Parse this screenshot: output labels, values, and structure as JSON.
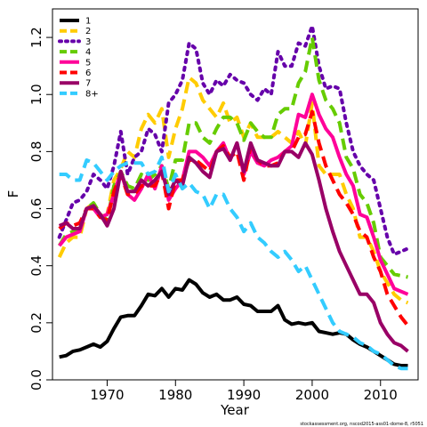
{
  "chart_data": {
    "type": "line",
    "xlabel": "Year",
    "ylabel": "F",
    "xlim": [
      1962,
      2015.5
    ],
    "ylim": [
      0,
      1.3
    ],
    "xticks": [
      1970,
      1980,
      1990,
      2000,
      2010
    ],
    "yticks": [
      0.0,
      0.2,
      0.4,
      0.6,
      0.8,
      1.0,
      1.2
    ],
    "ytick_labels": [
      "0.0",
      "0.2",
      "0.4",
      "0.6",
      "0.8",
      "1.0",
      "1.2"
    ],
    "legend_position": "top-left",
    "grid": false,
    "x": [
      1963,
      1964,
      1965,
      1966,
      1967,
      1968,
      1969,
      1970,
      1971,
      1972,
      1973,
      1974,
      1975,
      1976,
      1977,
      1978,
      1979,
      1980,
      1981,
      1982,
      1983,
      1984,
      1985,
      1986,
      1987,
      1988,
      1989,
      1990,
      1991,
      1992,
      1993,
      1994,
      1995,
      1996,
      1997,
      1998,
      1999,
      2000,
      2001,
      2002,
      2003,
      2004,
      2005,
      2006,
      2007,
      2008,
      2009,
      2010,
      2011,
      2012,
      2013,
      2014
    ],
    "series": [
      {
        "name": "1",
        "color": "#000000",
        "dash": "solid",
        "values": [
          0.08,
          0.085,
          0.1,
          0.105,
          0.115,
          0.125,
          0.115,
          0.135,
          0.18,
          0.22,
          0.225,
          0.225,
          0.26,
          0.3,
          0.295,
          0.32,
          0.29,
          0.32,
          0.315,
          0.35,
          0.335,
          0.305,
          0.29,
          0.3,
          0.28,
          0.28,
          0.29,
          0.265,
          0.26,
          0.24,
          0.24,
          0.24,
          0.26,
          0.21,
          0.195,
          0.2,
          0.195,
          0.2,
          0.17,
          0.165,
          0.16,
          0.165,
          0.16,
          0.14,
          0.125,
          0.115,
          0.1,
          0.085,
          0.07,
          0.055,
          0.05,
          0.05
        ]
      },
      {
        "name": "2",
        "color": "#ffcc00",
        "dash": "dashed",
        "values": [
          0.43,
          0.48,
          0.5,
          0.5,
          0.6,
          0.62,
          0.57,
          0.58,
          0.7,
          0.74,
          0.8,
          0.78,
          0.88,
          0.93,
          0.9,
          0.95,
          0.78,
          0.88,
          0.95,
          1.06,
          1.04,
          0.98,
          0.95,
          0.92,
          0.97,
          0.9,
          0.92,
          0.85,
          0.9,
          0.85,
          0.85,
          0.85,
          0.87,
          0.85,
          0.83,
          0.87,
          0.82,
          0.97,
          0.75,
          0.72,
          0.72,
          0.72,
          0.65,
          0.6,
          0.5,
          0.5,
          0.45,
          0.38,
          0.34,
          0.3,
          0.28,
          0.27
        ]
      },
      {
        "name": "3",
        "color": "#6600aa",
        "dash": "dotted",
        "values": [
          0.5,
          0.56,
          0.62,
          0.63,
          0.66,
          0.72,
          0.7,
          0.67,
          0.75,
          0.87,
          0.72,
          0.78,
          0.8,
          0.88,
          0.86,
          0.8,
          0.97,
          1.0,
          1.05,
          1.18,
          1.16,
          1.04,
          1.0,
          1.05,
          1.03,
          1.07,
          1.05,
          1.04,
          1.0,
          0.98,
          1.02,
          1.0,
          1.15,
          1.1,
          1.1,
          1.18,
          1.17,
          1.24,
          1.1,
          1.02,
          1.03,
          1.02,
          0.9,
          0.8,
          0.75,
          0.72,
          0.7,
          0.6,
          0.5,
          0.44,
          0.45,
          0.46
        ]
      },
      {
        "name": "4",
        "color": "#66cc00",
        "dash": "dashed",
        "values": [
          0.47,
          0.51,
          0.52,
          0.53,
          0.6,
          0.62,
          0.58,
          0.56,
          0.68,
          0.73,
          0.68,
          0.67,
          0.72,
          0.7,
          0.72,
          0.75,
          0.67,
          0.77,
          0.77,
          0.9,
          0.9,
          0.85,
          0.83,
          0.88,
          0.92,
          0.92,
          0.9,
          0.84,
          0.9,
          0.87,
          0.85,
          0.85,
          0.93,
          0.95,
          0.95,
          1.04,
          1.08,
          1.2,
          1.05,
          0.98,
          0.95,
          0.9,
          0.78,
          0.74,
          0.65,
          0.62,
          0.55,
          0.43,
          0.4,
          0.37,
          0.365,
          0.36
        ]
      },
      {
        "name": "5",
        "color": "#ff0099",
        "dash": "solid",
        "values": [
          0.47,
          0.5,
          0.51,
          0.52,
          0.6,
          0.6,
          0.57,
          0.58,
          0.65,
          0.73,
          0.65,
          0.63,
          0.67,
          0.72,
          0.67,
          0.75,
          0.63,
          0.67,
          0.7,
          0.8,
          0.8,
          0.78,
          0.75,
          0.8,
          0.83,
          0.77,
          0.83,
          0.72,
          0.8,
          0.76,
          0.75,
          0.77,
          0.78,
          0.8,
          0.82,
          0.93,
          0.92,
          1.0,
          0.93,
          0.88,
          0.85,
          0.78,
          0.72,
          0.68,
          0.58,
          0.57,
          0.5,
          0.42,
          0.37,
          0.32,
          0.31,
          0.3
        ]
      },
      {
        "name": "6",
        "color": "#ff0000",
        "dash": "dashed",
        "values": [
          0.53,
          0.55,
          0.54,
          0.55,
          0.6,
          0.6,
          0.57,
          0.56,
          0.66,
          0.72,
          0.65,
          0.65,
          0.68,
          0.68,
          0.68,
          0.73,
          0.6,
          0.7,
          0.7,
          0.77,
          0.77,
          0.75,
          0.73,
          0.8,
          0.82,
          0.78,
          0.8,
          0.7,
          0.82,
          0.77,
          0.75,
          0.75,
          0.76,
          0.8,
          0.8,
          0.85,
          0.86,
          0.94,
          0.83,
          0.75,
          0.7,
          0.65,
          0.62,
          0.58,
          0.52,
          0.5,
          0.43,
          0.38,
          0.3,
          0.26,
          0.22,
          0.19
        ]
      },
      {
        "name": "7",
        "color": "#990066",
        "dash": "solid",
        "values": [
          0.54,
          0.55,
          0.53,
          0.53,
          0.6,
          0.61,
          0.58,
          0.54,
          0.6,
          0.73,
          0.66,
          0.66,
          0.7,
          0.68,
          0.7,
          0.73,
          0.65,
          0.7,
          0.68,
          0.78,
          0.76,
          0.73,
          0.71,
          0.8,
          0.81,
          0.77,
          0.83,
          0.73,
          0.83,
          0.77,
          0.76,
          0.75,
          0.75,
          0.8,
          0.8,
          0.78,
          0.83,
          0.79,
          0.7,
          0.6,
          0.52,
          0.45,
          0.4,
          0.35,
          0.3,
          0.3,
          0.27,
          0.2,
          0.16,
          0.13,
          0.12,
          0.1
        ]
      },
      {
        "name": "8+",
        "color": "#33ccff",
        "dash": "dashed",
        "values": [
          0.72,
          0.72,
          0.7,
          0.7,
          0.77,
          0.76,
          0.73,
          0.7,
          0.73,
          0.75,
          0.76,
          0.76,
          0.76,
          0.72,
          0.73,
          0.78,
          0.66,
          0.72,
          0.67,
          0.69,
          0.66,
          0.65,
          0.6,
          0.65,
          0.65,
          0.6,
          0.57,
          0.52,
          0.55,
          0.5,
          0.48,
          0.45,
          0.43,
          0.45,
          0.42,
          0.38,
          0.4,
          0.35,
          0.3,
          0.25,
          0.2,
          0.17,
          0.16,
          0.15,
          0.13,
          0.12,
          0.1,
          0.09,
          0.07,
          0.05,
          0.04,
          0.04
        ]
      }
    ]
  },
  "footnote": "stockassessment.org, nscod2015-ass01-dome-8, r5051"
}
